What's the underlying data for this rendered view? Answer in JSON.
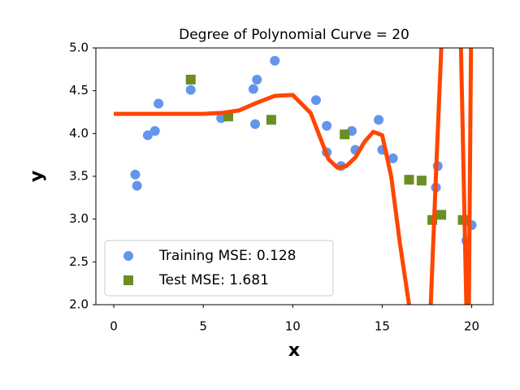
{
  "chart_data": {
    "type": "scatter",
    "title": "Degree of Polynomial Curve = 20",
    "x_label": "x",
    "y_label": "y",
    "xlim": [
      -1,
      21.2
    ],
    "ylim": [
      2,
      5
    ],
    "xticks": [
      0,
      5,
      10,
      15,
      20
    ],
    "yticks": [
      {
        "value": 2,
        "label": "2.0"
      },
      2.5,
      {
        "value": 3,
        "label": "3.0"
      },
      3.5,
      {
        "value": 4,
        "label": "4.0"
      },
      4.5,
      {
        "value": 5,
        "label": "5.0"
      }
    ],
    "legend": "lower left",
    "series": [
      {
        "name": "Training MSE: 0.128",
        "type": "scatter",
        "marker": "circle",
        "color": "#6495ed",
        "x": [
          1.2,
          1.3,
          1.9,
          2.3,
          2.5,
          4.3,
          6.0,
          7.8,
          7.9,
          8.0,
          9.0,
          11.3,
          11.9,
          11.9,
          12.7,
          13.3,
          13.5,
          14.8,
          15.0,
          15.6,
          18.0,
          18.1,
          19.7,
          20.0
        ],
        "values": [
          3.52,
          3.39,
          3.98,
          4.03,
          4.35,
          4.51,
          4.18,
          4.52,
          4.11,
          4.63,
          4.85,
          4.39,
          4.09,
          3.78,
          3.62,
          4.03,
          3.81,
          4.16,
          3.81,
          3.71,
          3.37,
          3.62,
          2.75,
          2.93
        ]
      },
      {
        "name": "Test MSE: 1.681",
        "type": "scatter",
        "marker": "square",
        "color": "#6b8e23",
        "x": [
          4.3,
          6.4,
          8.8,
          12.9,
          16.5,
          17.2,
          17.8,
          18.3,
          19.5
        ],
        "values": [
          4.63,
          4.2,
          4.16,
          3.99,
          3.46,
          3.45,
          2.99,
          3.05,
          2.99
        ]
      },
      {
        "type": "line",
        "color": "#ff4500",
        "x": [
          0,
          1,
          2,
          3,
          4,
          5,
          6,
          7,
          8,
          9,
          10,
          11,
          12,
          12.5,
          13,
          13.5,
          14,
          14.5,
          15,
          15.5,
          16,
          16.5,
          17,
          17.5,
          18,
          18.3,
          18.6,
          19,
          19.4,
          19.6,
          19.8,
          20
        ],
        "values": [
          4.23,
          4.23,
          4.23,
          4.23,
          4.23,
          4.23,
          4.24,
          4.27,
          4.36,
          4.44,
          4.45,
          4.24,
          3.7,
          3.6,
          3.62,
          3.72,
          3.9,
          4.02,
          3.98,
          3.5,
          2.7,
          2.0,
          0.8,
          0.9,
          3.5,
          5.0,
          6.5,
          7.0,
          5.0,
          3.0,
          1.0,
          6.0
        ]
      }
    ]
  }
}
